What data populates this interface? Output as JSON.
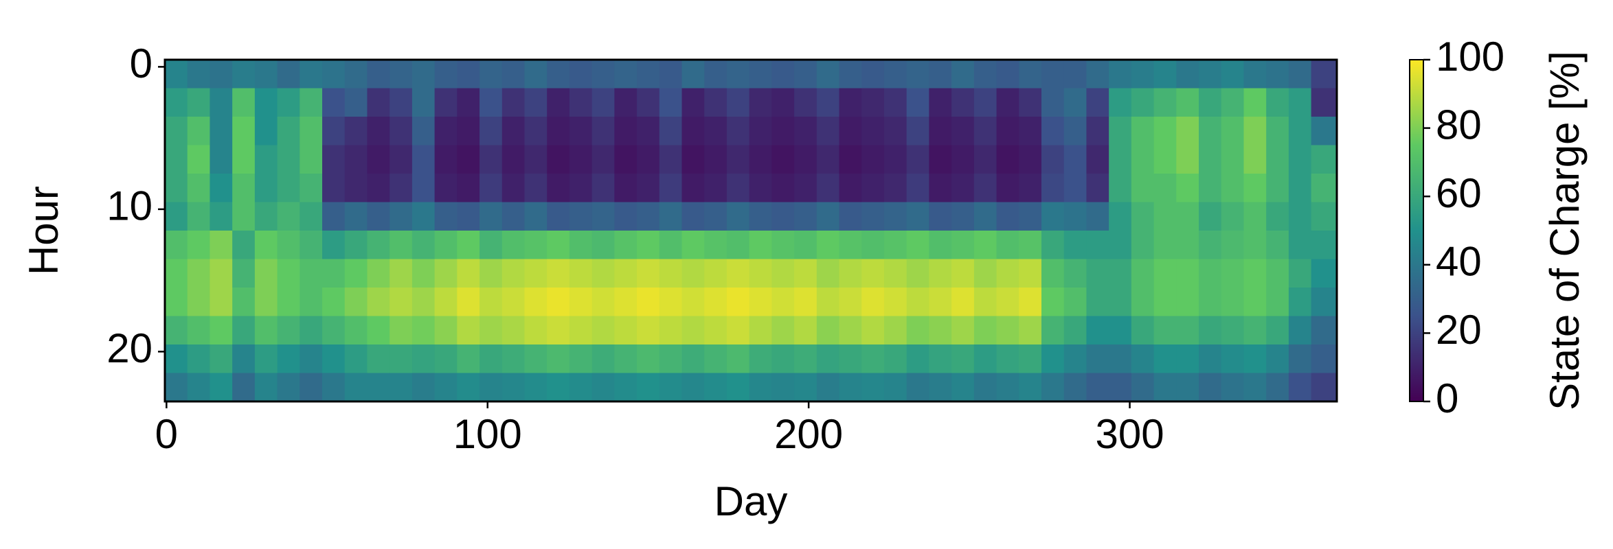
{
  "chart_data": {
    "type": "heatmap",
    "xlabel": "Day",
    "ylabel": "Hour",
    "colorbar_label": "State of Charge [%]",
    "xlim": [
      -0.5,
      364.5
    ],
    "ylim": [
      23.5,
      -0.5
    ],
    "xticks": [
      0,
      100,
      200,
      300
    ],
    "yticks": [
      0,
      10,
      20
    ],
    "clim": [
      0,
      100
    ],
    "cticks": [
      0,
      20,
      40,
      60,
      80,
      100
    ],
    "colormap": "viridis",
    "x": [
      0,
      7,
      14,
      21,
      28,
      35,
      42,
      49,
      56,
      63,
      70,
      77,
      84,
      91,
      98,
      105,
      112,
      119,
      126,
      133,
      140,
      147,
      154,
      161,
      168,
      175,
      182,
      189,
      196,
      203,
      210,
      217,
      224,
      231,
      238,
      245,
      252,
      259,
      266,
      273,
      280,
      287,
      294,
      301,
      308,
      315,
      322,
      329,
      336,
      343,
      350,
      357
    ],
    "y": [
      0,
      2,
      4,
      6,
      8,
      10,
      12,
      14,
      16,
      18,
      20,
      22
    ],
    "z": [
      [
        45,
        40,
        38,
        42,
        40,
        35,
        40,
        38,
        35,
        30,
        32,
        35,
        30,
        28,
        32,
        30,
        35,
        30,
        28,
        30,
        32,
        30,
        28,
        35,
        30,
        32,
        30,
        28,
        30,
        35,
        30,
        28,
        30,
        32,
        30,
        35,
        30,
        28,
        32,
        30,
        30,
        35,
        40,
        42,
        45,
        40,
        42,
        45,
        40,
        38,
        35,
        20
      ],
      [
        55,
        60,
        45,
        70,
        50,
        55,
        65,
        25,
        30,
        15,
        20,
        35,
        15,
        10,
        25,
        15,
        20,
        10,
        15,
        20,
        10,
        15,
        25,
        10,
        15,
        20,
        12,
        10,
        15,
        20,
        10,
        12,
        15,
        25,
        10,
        15,
        20,
        10,
        15,
        30,
        35,
        20,
        55,
        60,
        65,
        70,
        60,
        65,
        75,
        60,
        55,
        15
      ],
      [
        60,
        70,
        45,
        75,
        50,
        60,
        70,
        20,
        15,
        10,
        15,
        30,
        10,
        8,
        20,
        10,
        15,
        8,
        10,
        15,
        8,
        10,
        20,
        8,
        10,
        15,
        10,
        8,
        10,
        15,
        8,
        10,
        12,
        20,
        8,
        10,
        15,
        8,
        10,
        25,
        30,
        15,
        60,
        70,
        75,
        80,
        65,
        70,
        80,
        65,
        55,
        40
      ],
      [
        60,
        75,
        45,
        75,
        55,
        60,
        70,
        15,
        12,
        8,
        12,
        25,
        8,
        6,
        15,
        8,
        12,
        6,
        8,
        12,
        6,
        8,
        15,
        6,
        8,
        12,
        8,
        6,
        8,
        12,
        6,
        8,
        10,
        15,
        6,
        8,
        12,
        6,
        8,
        20,
        25,
        12,
        60,
        70,
        75,
        80,
        65,
        70,
        80,
        65,
        55,
        60
      ],
      [
        60,
        70,
        50,
        70,
        55,
        60,
        65,
        15,
        12,
        10,
        15,
        25,
        10,
        8,
        18,
        10,
        15,
        8,
        10,
        15,
        8,
        10,
        18,
        8,
        10,
        15,
        10,
        8,
        10,
        15,
        8,
        10,
        12,
        18,
        8,
        10,
        15,
        8,
        10,
        22,
        25,
        15,
        60,
        70,
        70,
        75,
        65,
        70,
        75,
        65,
        55,
        65
      ],
      [
        55,
        65,
        55,
        70,
        60,
        65,
        60,
        30,
        35,
        30,
        35,
        40,
        30,
        28,
        35,
        30,
        35,
        28,
        30,
        32,
        28,
        30,
        35,
        28,
        30,
        35,
        30,
        28,
        30,
        35,
        28,
        30,
        32,
        35,
        28,
        30,
        35,
        28,
        30,
        40,
        38,
        35,
        55,
        65,
        70,
        70,
        60,
        65,
        70,
        60,
        55,
        60
      ],
      [
        70,
        75,
        80,
        60,
        75,
        70,
        65,
        55,
        60,
        65,
        70,
        65,
        70,
        75,
        65,
        70,
        72,
        75,
        70,
        68,
        72,
        75,
        70,
        75,
        72,
        70,
        75,
        72,
        70,
        75,
        72,
        70,
        72,
        75,
        70,
        72,
        75,
        70,
        72,
        60,
        55,
        55,
        55,
        65,
        70,
        70,
        65,
        68,
        70,
        65,
        55,
        55
      ],
      [
        75,
        80,
        85,
        65,
        80,
        75,
        70,
        70,
        75,
        80,
        85,
        80,
        85,
        90,
        85,
        88,
        90,
        92,
        90,
        88,
        90,
        92,
        90,
        88,
        90,
        92,
        90,
        88,
        90,
        85,
        88,
        90,
        88,
        85,
        88,
        90,
        85,
        88,
        90,
        70,
        65,
        60,
        60,
        70,
        75,
        75,
        70,
        72,
        75,
        70,
        60,
        50
      ],
      [
        75,
        80,
        85,
        70,
        80,
        75,
        70,
        75,
        80,
        85,
        88,
        85,
        90,
        95,
        90,
        92,
        95,
        97,
        95,
        93,
        95,
        97,
        95,
        93,
        95,
        97,
        95,
        93,
        95,
        90,
        92,
        95,
        93,
        90,
        92,
        95,
        90,
        92,
        95,
        75,
        70,
        60,
        60,
        70,
        75,
        75,
        70,
        72,
        75,
        70,
        55,
        45
      ],
      [
        65,
        70,
        75,
        60,
        70,
        65,
        60,
        65,
        70,
        75,
        80,
        78,
        82,
        88,
        85,
        87,
        90,
        92,
        90,
        88,
        90,
        92,
        90,
        88,
        90,
        92,
        88,
        85,
        88,
        82,
        85,
        88,
        85,
        80,
        82,
        85,
        80,
        82,
        85,
        65,
        60,
        50,
        50,
        60,
        65,
        65,
        60,
        62,
        65,
        60,
        45,
        35
      ],
      [
        50,
        55,
        60,
        45,
        55,
        50,
        45,
        50,
        55,
        60,
        60,
        58,
        60,
        65,
        60,
        62,
        65,
        68,
        65,
        62,
        65,
        68,
        65,
        62,
        65,
        68,
        62,
        60,
        62,
        58,
        60,
        62,
        60,
        55,
        58,
        60,
        55,
        58,
        60,
        50,
        45,
        40,
        40,
        45,
        50,
        50,
        45,
        48,
        50,
        45,
        35,
        30
      ],
      [
        40,
        45,
        50,
        35,
        45,
        40,
        35,
        40,
        45,
        45,
        45,
        42,
        45,
        48,
        45,
        46,
        48,
        50,
        48,
        46,
        48,
        50,
        48,
        46,
        48,
        50,
        46,
        45,
        46,
        42,
        45,
        46,
        45,
        40,
        42,
        45,
        40,
        42,
        45,
        40,
        35,
        30,
        30,
        35,
        40,
        40,
        35,
        38,
        40,
        35,
        25,
        20
      ]
    ]
  }
}
